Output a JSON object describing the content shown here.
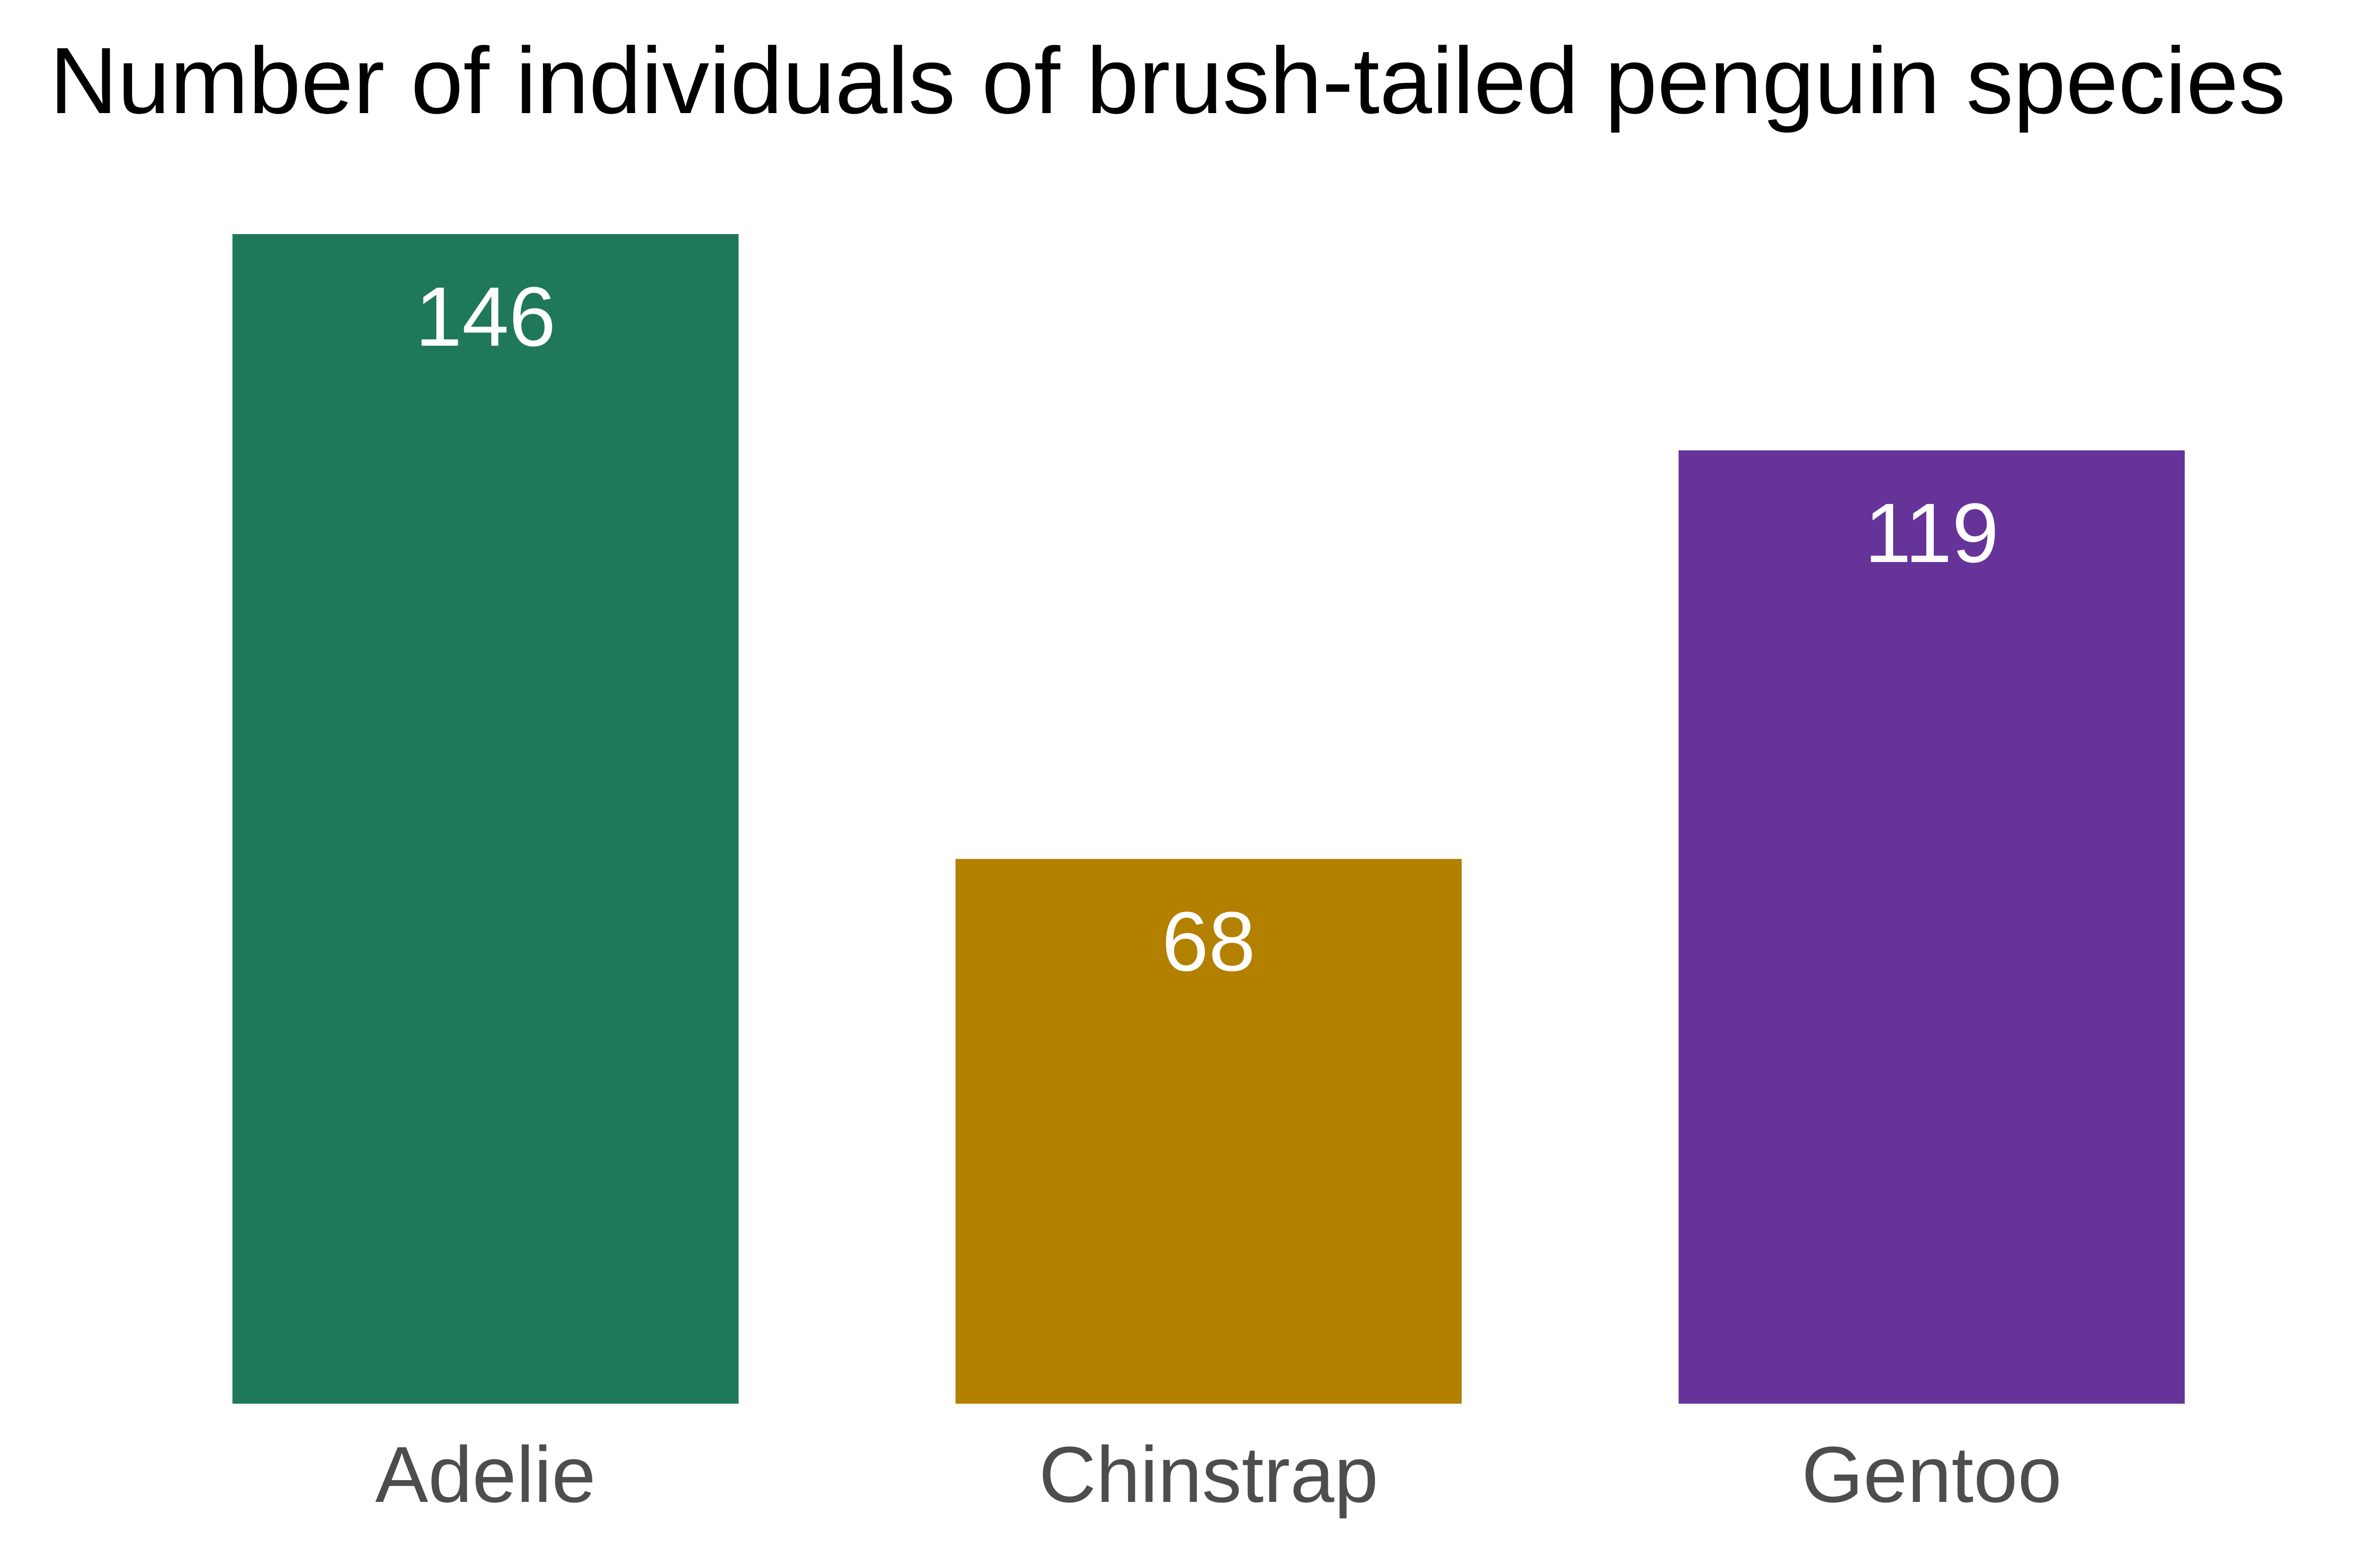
{
  "chart_data": {
    "type": "bar",
    "title": "Number of individuals of brush-tailed penguin species",
    "xlabel": "",
    "ylabel": "",
    "categories": [
      "Adelie",
      "Chinstrap",
      "Gentoo"
    ],
    "values": [
      146,
      68,
      119
    ],
    "ylim": [
      0,
      146
    ],
    "colors": [
      "#1f785a",
      "#b38000",
      "#663399"
    ],
    "data_label_color": "#ffffff",
    "tick_label_color": "#4d4d4d",
    "grid": false,
    "legend": "none",
    "axis_lines": false
  }
}
